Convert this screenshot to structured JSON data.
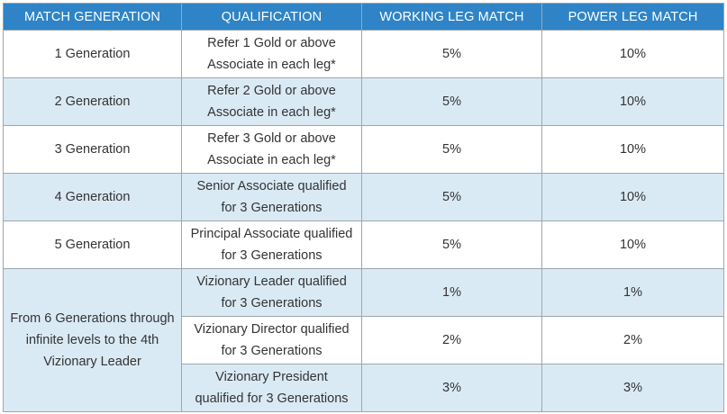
{
  "table": {
    "headers": [
      "MATCH GENERATION",
      "QUALIFICATION",
      "WORKING LEG MATCH",
      "POWER LEG MATCH"
    ],
    "rows": [
      {
        "generation": "1 Generation",
        "qual_line1": "Refer 1 Gold or above",
        "qual_line2": "Associate in each leg*",
        "working": "5%",
        "power": "10%"
      },
      {
        "generation": "2 Generation",
        "qual_line1": "Refer 2 Gold or above",
        "qual_line2": "Associate in each leg*",
        "working": "5%",
        "power": "10%"
      },
      {
        "generation": "3 Generation",
        "qual_line1": "Refer 3 Gold or above",
        "qual_line2": "Associate in each leg*",
        "working": "5%",
        "power": "10%"
      },
      {
        "generation": "4 Generation",
        "qual_line1": "Senior Associate qualified",
        "qual_line2": "for 3 Generations",
        "working": "5%",
        "power": "10%"
      },
      {
        "generation": "5 Generation",
        "qual_line1": "Principal Associate qualified",
        "qual_line2": "for 3 Generations",
        "working": "5%",
        "power": "10%"
      }
    ],
    "merged_group": {
      "generation_line1": "From 6 Generations through",
      "generation_line2": "infinite levels to the 4th",
      "generation_line3": "Vizionary Leader",
      "rows": [
        {
          "qual_line1": "Vizionary Leader qualified",
          "qual_line2": "for 3 Generations",
          "working": "1%",
          "power": "1%"
        },
        {
          "qual_line1": "Vizionary Director qualified",
          "qual_line2": "for 3 Generations",
          "working": "2%",
          "power": "2%"
        },
        {
          "qual_line1": "Vizionary President",
          "qual_line2": "qualified for 3 Generations",
          "working": "3%",
          "power": "3%"
        }
      ]
    }
  }
}
